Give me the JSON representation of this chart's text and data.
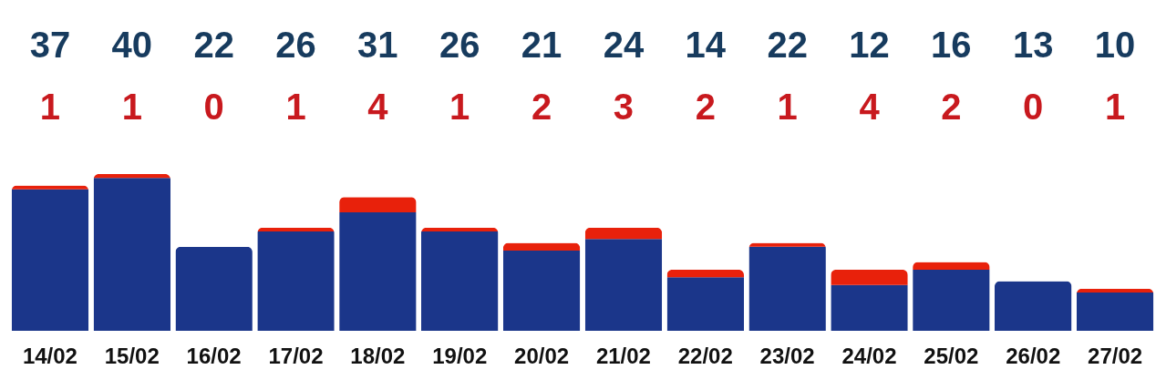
{
  "chart_data": {
    "type": "bar",
    "stacked": true,
    "data_labels": true,
    "tick_labels": "x",
    "categories": [
      "14/02",
      "15/02",
      "16/02",
      "17/02",
      "18/02",
      "19/02",
      "20/02",
      "21/02",
      "22/02",
      "23/02",
      "24/02",
      "25/02",
      "26/02",
      "27/02"
    ],
    "series": [
      {
        "color": "#1b368a",
        "values": [
          37,
          40,
          22,
          26,
          31,
          26,
          21,
          24,
          14,
          22,
          12,
          16,
          13,
          10
        ]
      },
      {
        "color": "#e8210b",
        "values": [
          1,
          1,
          0,
          1,
          4,
          1,
          2,
          3,
          2,
          1,
          4,
          2,
          0,
          1
        ]
      }
    ]
  }
}
